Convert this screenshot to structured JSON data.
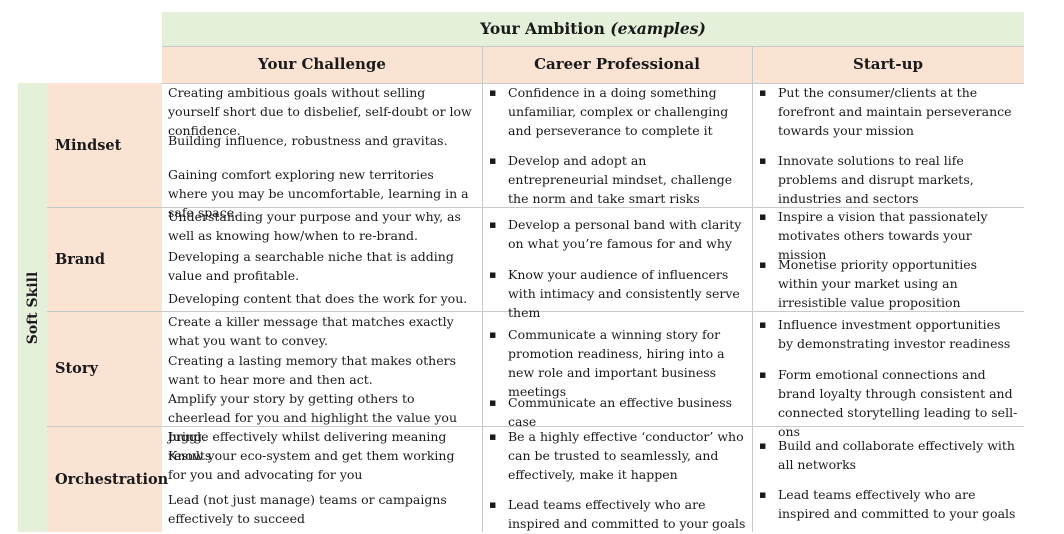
{
  "header": {
    "title": "Your Ambition",
    "title_suffix": "(examples)"
  },
  "columns": {
    "challenge": "Your Challenge",
    "career": "Career Professional",
    "startup": "Start-up"
  },
  "side_label": "Soft Skill",
  "rows": [
    {
      "label": "Mindset",
      "challenge": [
        "Creating ambitious goals without selling yourself short due to disbelief, self-doubt or low confidence.",
        "Building influence, robustness and gravitas.",
        "Gaining comfort exploring new territories where you may be uncomfortable, learning in a safe space."
      ],
      "career": [
        "Confidence in a doing something unfamiliar, complex or challenging and perseverance to complete it",
        "Develop and adopt an entrepreneurial mindset, challenge the norm and take smart risks"
      ],
      "startup": [
        "Put the consumer/clients at the forefront and maintain perseverance towards your mission",
        "Innovate solutions to real life problems and disrupt markets, industries and sectors"
      ]
    },
    {
      "label": "Brand",
      "challenge": [
        "Understanding your purpose and your why, as well as knowing how/when to re-brand.",
        "Developing a searchable niche that is adding value and profitable.",
        "Developing content that does the work for you."
      ],
      "career": [
        "Develop a personal band with clarity on what you’re famous for and why",
        "Know your audience of influencers with intimacy and consistently serve them"
      ],
      "startup": [
        "Inspire a vision that passionately motivates others towards your mission",
        "Monetise priority opportunities within your market using an irresistible value proposition"
      ]
    },
    {
      "label": "Story",
      "challenge": [
        "Create a killer message that matches exactly what you want to convey.",
        "Creating a lasting memory that makes others want to hear more and then act.",
        "Amplify your story by getting others to cheerlead for you and highlight the value you bring."
      ],
      "career": [
        "Communicate a winning story for promotion readiness, hiring into a new role and important business meetings",
        "Communicate an effective business case"
      ],
      "startup": [
        "Influence investment opportunities by demonstrating investor readiness",
        "Form emotional connections and brand loyalty through consistent and connected storytelling leading to sell-ons"
      ]
    },
    {
      "label": "Orchestration",
      "challenge": [
        "Juggle effectively whilst delivering meaning results",
        "Know your eco-system and get them working for you and advocating for you",
        "Lead (not just manage) teams or campaigns effectively to succeed"
      ],
      "career": [
        "Be a highly effective ‘conductor’ who can be trusted to seamlessly, and effectively, make it happen",
        "Lead teams effectively who are inspired and committed to your goals"
      ],
      "startup": [
        "Build and collaborate effectively with all networks",
        "Lead teams effectively who are inspired and committed to your goals"
      ]
    }
  ]
}
